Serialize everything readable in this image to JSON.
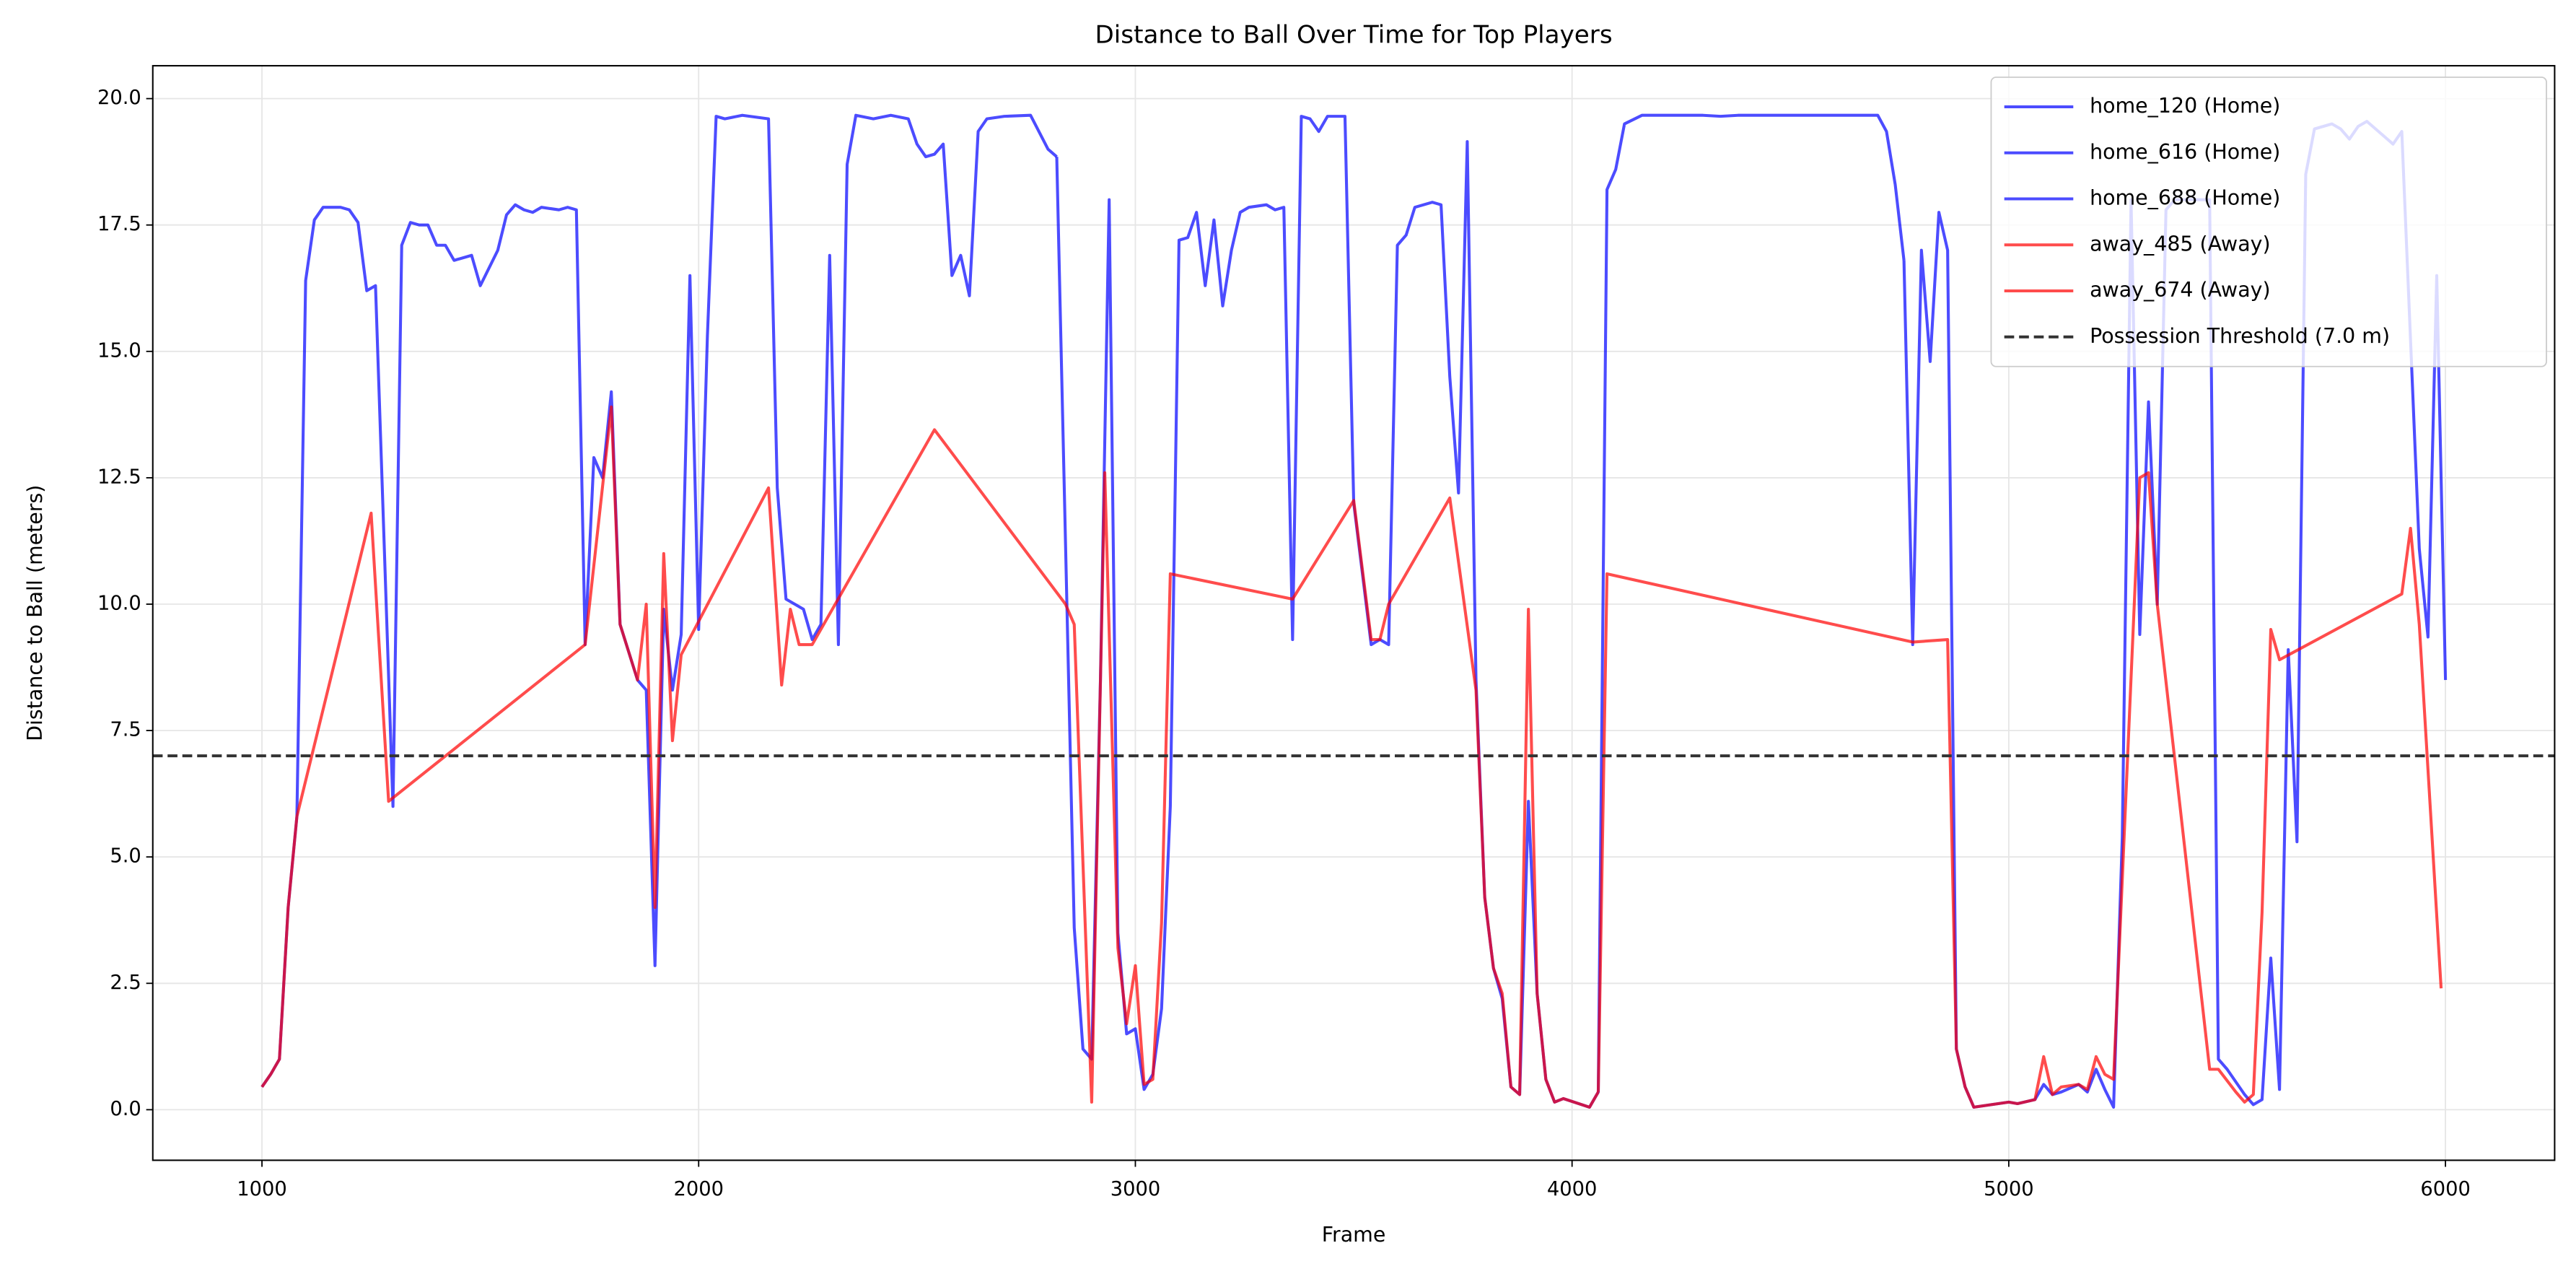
{
  "chart_data": {
    "type": "line",
    "title": "Distance to Ball Over Time for Top Players",
    "xlabel": "Frame",
    "ylabel": "Distance to Ball (meters)",
    "xlim": [
      750,
      6250
    ],
    "ylim": [
      -1.0,
      20.65
    ],
    "xticks": [
      1000,
      2000,
      3000,
      4000,
      5000,
      6000
    ],
    "yticks": [
      {
        "value": 0,
        "label": "0.0"
      },
      2.5,
      {
        "value": 5,
        "label": "5.0"
      },
      7.5,
      {
        "value": 10,
        "label": "10.0"
      },
      12.5,
      {
        "value": 15,
        "label": "15.0"
      },
      17.5,
      {
        "value": 20,
        "label": "20.0"
      }
    ],
    "grid": true,
    "legend": "upper-right",
    "alpha": 0.7,
    "threshold": {
      "value": 7.0,
      "label": "Possession Threshold (7.0 m)",
      "color": "#333333"
    },
    "series": [
      {
        "name": "home_120 (Home)",
        "color": "#0000ff",
        "x": [
          1000,
          1020,
          1040,
          1060,
          1080,
          1100,
          1120,
          1140,
          1180,
          1200,
          1220,
          1240,
          1260,
          1300,
          1320,
          1340,
          1360,
          1380,
          1400,
          1420,
          1440,
          1480,
          1500,
          1540,
          1560,
          1580,
          1600,
          1620,
          1640,
          1680,
          1700,
          1720,
          1740,
          1760,
          1780,
          1800,
          1820,
          1860,
          1880,
          1900,
          1920,
          1940,
          1960,
          1980,
          2000,
          2020,
          2040,
          2060,
          2100,
          2160,
          2180,
          2200,
          2240,
          2260,
          2280,
          2300,
          2320,
          2340,
          2360,
          2400,
          2440,
          2480,
          2500,
          2520,
          2540,
          2560,
          2580,
          2600,
          2620,
          2640,
          2660,
          2700,
          2760,
          2800,
          2820
        ],
        "values": [
          0.45,
          0.7,
          1.0,
          4.0,
          5.8,
          16.4,
          17.6,
          17.85,
          17.85,
          17.8,
          17.55,
          16.2,
          16.3,
          6.0,
          17.1,
          17.55,
          17.5,
          17.5,
          17.1,
          17.1,
          16.8,
          16.9,
          16.3,
          17.0,
          17.7,
          17.9,
          17.8,
          17.75,
          17.85,
          17.8,
          17.85,
          17.8,
          9.2,
          12.9,
          12.5,
          14.2,
          9.6,
          8.5,
          8.3,
          2.85,
          9.9,
          8.3,
          9.4,
          16.5,
          9.5,
          15.3,
          19.65,
          19.6,
          19.67,
          19.6,
          12.3,
          10.1,
          9.9,
          9.3,
          9.6,
          16.9,
          9.2,
          18.7,
          19.67,
          19.6,
          19.67,
          19.6,
          19.1,
          18.85,
          18.9,
          19.1,
          16.5,
          16.9,
          16.1,
          19.35,
          19.6,
          19.65,
          19.67,
          19.0,
          18.85
        ]
      },
      {
        "name": "home_616 (Home)",
        "color": "#0000ff",
        "x": [
          2820,
          2860,
          2880,
          2900,
          2920,
          2940,
          2960,
          2980,
          3000,
          3020,
          3040,
          3060,
          3080,
          3100,
          3120,
          3140,
          3160,
          3180,
          3200,
          3220,
          3240,
          3260,
          3300,
          3320,
          3340,
          3360,
          3380,
          3400,
          3420,
          3440,
          3480,
          3500,
          3540,
          3560,
          3580,
          3600,
          3620,
          3640,
          3680,
          3700,
          3720,
          3740,
          3760,
          3780,
          3800,
          3820,
          3840,
          3860,
          3880,
          3900,
          3920,
          3940,
          3960,
          3980,
          4040,
          4060,
          4080,
          4100,
          4120,
          4160,
          4300,
          4340,
          4380,
          4700,
          4720,
          4740,
          4760
        ],
        "values": [
          18.85,
          3.6,
          1.2,
          1.0,
          8.5,
          18.0,
          3.5,
          1.5,
          1.6,
          0.4,
          0.7,
          2.0,
          6.0,
          17.2,
          17.25,
          17.75,
          16.3,
          17.6,
          15.9,
          17.0,
          17.75,
          17.85,
          17.9,
          17.8,
          17.85,
          9.3,
          19.65,
          19.6,
          19.35,
          19.65,
          19.65,
          12.0,
          9.2,
          9.3,
          9.2,
          17.1,
          17.3,
          17.85,
          17.95,
          17.9,
          14.5,
          12.2,
          19.15,
          8.5,
          4.2,
          2.8,
          2.2,
          0.45,
          0.3,
          6.1,
          2.3,
          0.6,
          0.15,
          0.22,
          0.05,
          0.35,
          18.2,
          18.6,
          19.5,
          19.67,
          19.67,
          19.65,
          19.67,
          19.67,
          19.35,
          18.3,
          16.8
        ]
      },
      {
        "name": "home_688 (Home)",
        "color": "#0000ff",
        "x": [
          4760,
          4780,
          4800,
          4820,
          4840,
          4860,
          4880,
          4900,
          4920,
          4960,
          5000,
          5020,
          5060,
          5080,
          5100,
          5120,
          5160,
          5180,
          5200,
          5220,
          5240,
          5260,
          5280,
          5300,
          5320,
          5340,
          5360,
          5380,
          5460,
          5480,
          5500,
          5540,
          5560,
          5580,
          5600,
          5620,
          5640,
          5660,
          5680,
          5700,
          5740,
          5760,
          5780,
          5800,
          5820,
          5880,
          5900,
          5940,
          5960,
          5980,
          6000
        ],
        "values": [
          16.8,
          9.2,
          17.0,
          14.8,
          17.75,
          17.0,
          1.2,
          0.45,
          0.05,
          0.1,
          0.15,
          0.12,
          0.2,
          0.5,
          0.3,
          0.35,
          0.5,
          0.35,
          0.8,
          0.4,
          0.05,
          5.4,
          18.0,
          9.4,
          14.0,
          10.0,
          17.8,
          18.0,
          18.0,
          1.0,
          0.8,
          0.3,
          0.1,
          0.2,
          3.0,
          0.4,
          9.1,
          5.3,
          18.5,
          19.4,
          19.5,
          19.4,
          19.2,
          19.45,
          19.55,
          19.1,
          19.35,
          11.1,
          9.35,
          16.5,
          8.5
        ]
      },
      {
        "name": "away_485 (Away)",
        "color": "#ff0000",
        "x": [
          1000,
          1020,
          1040,
          1060,
          1080,
          1250,
          1290,
          1740,
          1800,
          1820,
          1860,
          1880,
          1900,
          1920,
          1940,
          1960,
          2160,
          2190,
          2210,
          2230,
          2260,
          2540,
          2840,
          2860,
          2900,
          2930,
          2960,
          2980,
          3000,
          3020,
          3040,
          3060,
          3080,
          3360,
          3500,
          3540,
          3560,
          3580,
          3720,
          3780,
          3800,
          3820,
          3840,
          3860,
          3880,
          3900,
          3920,
          3940,
          3960,
          3980,
          4040,
          4060
        ],
        "values": [
          0.45,
          0.7,
          1.0,
          4.0,
          5.8,
          11.8,
          6.1,
          9.2,
          13.9,
          9.6,
          8.5,
          10.0,
          4.0,
          11.0,
          7.3,
          9.0,
          12.3,
          8.4,
          9.9,
          9.2,
          9.2,
          13.45,
          10.0,
          9.6,
          0.15,
          12.6,
          3.2,
          1.7,
          2.85,
          0.5,
          0.6,
          3.7,
          10.6,
          10.1,
          12.05,
          9.3,
          9.3,
          10.0,
          12.1,
          8.3,
          4.2,
          2.8,
          2.3,
          0.45,
          0.3,
          9.9,
          2.3,
          0.6,
          0.15,
          0.22,
          0.05,
          0.35
        ]
      },
      {
        "name": "away_674 (Away)",
        "color": "#ff0000",
        "x": [
          4060,
          4080,
          4780,
          4860,
          4880,
          4900,
          4920,
          4960,
          5000,
          5020,
          5060,
          5080,
          5100,
          5120,
          5160,
          5180,
          5200,
          5220,
          5240,
          5300,
          5320,
          5340,
          5460,
          5480,
          5520,
          5540,
          5560,
          5580,
          5600,
          5620,
          5900,
          5920,
          5940,
          5990
        ],
        "values": [
          0.35,
          10.6,
          9.25,
          9.3,
          1.2,
          0.45,
          0.05,
          0.1,
          0.15,
          0.12,
          0.2,
          1.05,
          0.3,
          0.45,
          0.5,
          0.4,
          1.05,
          0.7,
          0.6,
          12.5,
          12.6,
          10.0,
          0.8,
          0.8,
          0.35,
          0.15,
          0.3,
          3.9,
          9.5,
          8.9,
          10.2,
          11.5,
          9.6,
          2.4
        ]
      }
    ]
  }
}
